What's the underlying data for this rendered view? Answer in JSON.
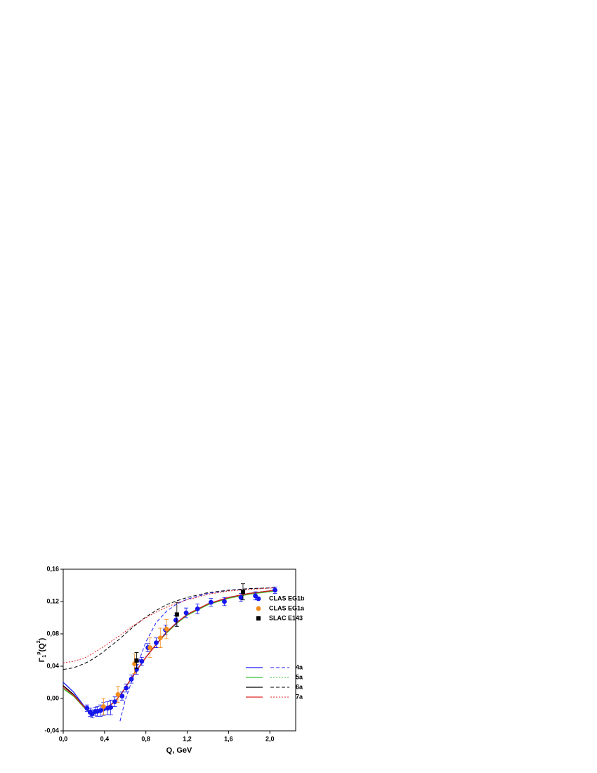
{
  "chart_data": {
    "type": "scatter",
    "x_label": "Q, GeV",
    "y_label": {
      "base": "Γ",
      "sub": "1",
      "sup": "p",
      "arg": "(Q",
      "arg_sup": "2",
      "close": ")"
    },
    "xlim": [
      0,
      2.25
    ],
    "ylim": [
      -0.04,
      0.16
    ],
    "xticks": [
      {
        "value": 0,
        "label": "0,0"
      },
      {
        "value": 0.4,
        "label": "0,4"
      },
      {
        "value": 0.8,
        "label": "0,8"
      },
      {
        "value": 1.2,
        "label": "1,2"
      },
      {
        "value": 1.6,
        "label": "1,6"
      },
      {
        "value": 2.0,
        "label": "2,0"
      }
    ],
    "yticks": [
      {
        "value": -0.04,
        "label": "-0,04"
      },
      {
        "value": 0,
        "label": "0,00"
      },
      {
        "value": 0.04,
        "label": "0,04"
      },
      {
        "value": 0.08,
        "label": "0,08"
      },
      {
        "value": 0.12,
        "label": "0,12"
      },
      {
        "value": 0.16,
        "label": "0,16"
      }
    ],
    "series": [
      {
        "name": "CLAS EG1b",
        "color": "#1515ee",
        "marker": "circle",
        "x": [
          0.23,
          0.26,
          0.28,
          0.31,
          0.33,
          0.36,
          0.39,
          0.43,
          0.46,
          0.5,
          0.57,
          0.61,
          0.66,
          0.71,
          0.76,
          0.82,
          0.9,
          0.99,
          1.09,
          1.19,
          1.3,
          1.43,
          1.56,
          1.72,
          1.86,
          2.05
        ],
        "values": [
          -0.012,
          -0.017,
          -0.019,
          -0.016,
          -0.016,
          -0.015,
          -0.013,
          -0.012,
          -0.011,
          -0.004,
          0.003,
          0.013,
          0.024,
          0.036,
          0.046,
          0.063,
          0.069,
          0.085,
          0.097,
          0.106,
          0.111,
          0.119,
          0.12,
          0.125,
          0.127,
          0.134
        ],
        "errors": [
          0.004,
          0.005,
          0.005,
          0.005,
          0.006,
          0.007,
          0.008,
          0.008,
          0.009,
          0.006,
          0.005,
          0.005,
          0.005,
          0.006,
          0.005,
          0.005,
          0.006,
          0.006,
          0.006,
          0.006,
          0.006,
          0.005,
          0.005,
          0.005,
          0.005,
          0.004
        ]
      },
      {
        "name": "CLAS EG1a",
        "color": "#f28c1e",
        "marker": "circle",
        "x": [
          0.39,
          0.53,
          0.69,
          0.84,
          0.94,
          1.0
        ],
        "values": [
          -0.01,
          0.005,
          0.043,
          0.063,
          0.075,
          0.086
        ],
        "errors": [
          0.01,
          0.01,
          0.012,
          0.012,
          0.012,
          0.012
        ]
      },
      {
        "name": "SLAC E143",
        "color": "#000000",
        "marker": "square",
        "x": [
          0.71,
          1.1,
          1.74
        ],
        "values": [
          0.047,
          0.104,
          0.132
        ],
        "errors": [
          0.01,
          0.015,
          0.01
        ]
      }
    ],
    "curve_x": [
      0,
      0.1,
      0.2,
      0.25,
      0.3,
      0.35,
      0.4,
      0.5,
      0.55,
      0.6,
      0.7,
      0.8,
      0.9,
      1.0,
      1.1,
      1.2,
      1.4,
      1.6,
      1.8,
      2.05
    ],
    "models": [
      {
        "name": "4a",
        "color": "#1a1aff",
        "dash": "dashed",
        "solid": [
          0.02,
          0.008,
          -0.009,
          -0.015,
          -0.018,
          -0.017,
          -0.013,
          -0.004,
          0.004,
          0.013,
          0.033,
          0.051,
          0.067,
          0.082,
          0.094,
          0.104,
          0.117,
          0.125,
          0.13,
          0.134
        ],
        "broken": [
          null,
          null,
          null,
          null,
          null,
          null,
          null,
          null,
          -0.028,
          -0.002,
          0.035,
          0.07,
          0.094,
          0.108,
          0.117,
          0.123,
          0.13,
          0.134,
          0.136,
          0.137
        ]
      },
      {
        "name": "5a",
        "color": "#33c433",
        "dash": "dotted",
        "solid": [
          0.012,
          0.003,
          -0.011,
          -0.017,
          -0.019,
          -0.017,
          -0.013,
          -0.004,
          0.004,
          0.013,
          0.033,
          0.051,
          0.067,
          0.081,
          0.093,
          0.103,
          0.116,
          0.124,
          0.129,
          0.133
        ]
      },
      {
        "name": "6a",
        "color": "#000000",
        "dash": "dashed",
        "solid": [
          0.016,
          0.005,
          -0.01,
          -0.016,
          -0.018,
          -0.017,
          -0.013,
          -0.004,
          0.004,
          0.013,
          0.033,
          0.051,
          0.067,
          0.082,
          0.094,
          0.104,
          0.117,
          0.125,
          0.13,
          0.134
        ],
        "broken": [
          0.036,
          0.038,
          0.043,
          0.046,
          0.05,
          0.054,
          0.059,
          0.069,
          0.074,
          0.08,
          0.091,
          0.101,
          0.109,
          0.116,
          0.121,
          0.125,
          0.131,
          0.134,
          0.136,
          0.137
        ]
      },
      {
        "name": "7a",
        "color": "#e02020",
        "dash": "dotted",
        "solid": [
          0.014,
          0.004,
          -0.01,
          -0.016,
          -0.018,
          -0.017,
          -0.013,
          -0.004,
          0.004,
          0.013,
          0.033,
          0.051,
          0.067,
          0.082,
          0.094,
          0.104,
          0.117,
          0.125,
          0.13,
          0.134
        ],
        "broken": [
          0.044,
          0.046,
          0.05,
          0.053,
          0.057,
          0.061,
          0.065,
          0.074,
          0.078,
          0.083,
          0.092,
          0.1,
          0.107,
          0.113,
          0.118,
          0.122,
          0.129,
          0.133,
          0.135,
          0.137
        ]
      }
    ]
  }
}
